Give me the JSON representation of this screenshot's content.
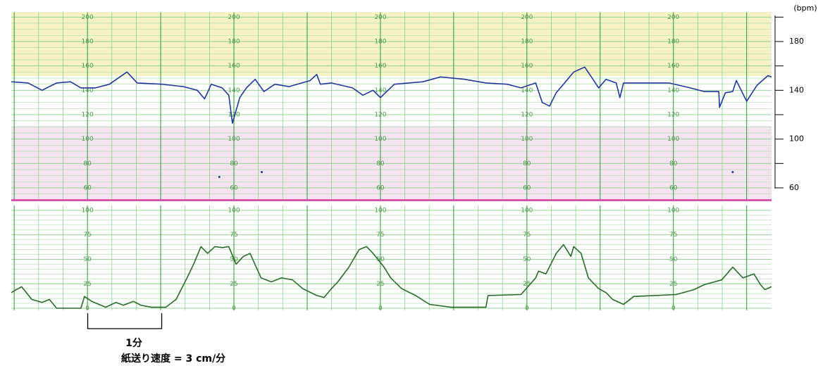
{
  "chart_data": [
    {
      "type": "line",
      "y_label": "(bpm)",
      "xlim": [
        -0.04,
        10.34
      ],
      "xticks": [
        0,
        1,
        2,
        3,
        4,
        5,
        6,
        7,
        8,
        9,
        10
      ],
      "ylim": [
        50,
        204
      ],
      "yticks": [
        60,
        80,
        100,
        120,
        140,
        160,
        180,
        200
      ],
      "y2lim": [
        50,
        204
      ],
      "y2ticks": [
        60,
        100,
        140,
        180
      ],
      "series": [
        {
          "color": "#22379b",
          "x": [
            -0.04,
            0.19,
            0.38,
            0.58,
            0.77,
            0.91,
            1.11,
            1.3,
            1.54,
            1.68,
            2.02,
            2.31,
            2.5,
            2.6,
            2.69,
            2.84,
            2.93,
            2.98,
            3.08,
            3.17,
            3.29,
            3.41,
            3.56,
            3.75,
            4.04,
            4.13,
            4.18,
            4.33,
            4.62,
            4.76,
            4.9,
            5.0,
            5.19,
            5.58,
            5.82,
            6.15,
            6.44,
            6.73,
            6.92,
            7.12,
            7.21,
            7.31,
            7.4,
            7.5,
            7.64,
            7.79,
            7.88,
            7.98,
            8.08,
            8.22,
            8.27,
            8.32,
            8.65,
            8.94,
            9.23,
            9.42,
            9.62,
            9.63,
            9.71,
            9.81,
            9.86,
            10.0,
            10.14,
            10.29,
            10.34
          ],
          "values": [
            147,
            146,
            140,
            146,
            147,
            142,
            142,
            145,
            155,
            146,
            145,
            143,
            140,
            133,
            145,
            142,
            136,
            113,
            134,
            142,
            149,
            139,
            145,
            143,
            148,
            153,
            145,
            146,
            142,
            136,
            140,
            134,
            145,
            147,
            151,
            149,
            146,
            145,
            142,
            146,
            130,
            127,
            138,
            145,
            155,
            159,
            151,
            142,
            149,
            146,
            134,
            146,
            146,
            146,
            142,
            139,
            139,
            126,
            138,
            139,
            148,
            131,
            144,
            152,
            151
          ]
        },
        {
          "type": "scatter",
          "color": "#22379b",
          "x": [
            2.8,
            3.38,
            9.81
          ],
          "values": [
            69,
            73,
            73
          ]
        }
      ]
    },
    {
      "type": "line",
      "xlim": [
        -0.04,
        10.34
      ],
      "xticks": [
        0,
        1,
        2,
        3,
        4,
        5,
        6,
        7,
        8,
        9,
        10
      ],
      "ylim": [
        -2,
        105
      ],
      "yticks": [
        0,
        25,
        50,
        75,
        100
      ],
      "annotations": [
        "1分",
        "紙送り速度 = 3 cm/分"
      ],
      "series": [
        {
          "color": "#2b6a2b",
          "x": [
            -0.04,
            0.1,
            0.24,
            0.38,
            0.48,
            0.58,
            0.91,
            0.96,
            1.06,
            1.25,
            1.39,
            1.49,
            1.63,
            1.73,
            1.88,
            2.07,
            2.21,
            2.36,
            2.45,
            2.55,
            2.64,
            2.74,
            2.84,
            2.93,
            3.03,
            3.13,
            3.22,
            3.37,
            3.51,
            3.65,
            3.8,
            3.94,
            4.13,
            4.23,
            4.33,
            4.42,
            4.57,
            4.71,
            4.81,
            4.9,
            5.05,
            5.14,
            5.29,
            5.48,
            5.67,
            5.96,
            6.44,
            6.47,
            6.92,
            7.12,
            7.16,
            7.26,
            7.4,
            7.5,
            7.6,
            7.64,
            7.74,
            7.84,
            7.98,
            8.08,
            8.17,
            8.32,
            8.46,
            8.75,
            9.04,
            9.28,
            9.42,
            9.66,
            9.81,
            9.95,
            10.1,
            10.19,
            10.25,
            10.34
          ],
          "values": [
            16,
            22,
            9,
            6,
            9,
            0,
            0,
            12,
            7,
            1,
            6,
            3,
            7,
            3,
            1,
            1,
            9,
            31,
            45,
            63,
            56,
            63,
            62,
            63,
            45,
            53,
            56,
            31,
            27,
            31,
            29,
            20,
            13,
            11,
            20,
            27,
            42,
            60,
            63,
            56,
            42,
            31,
            20,
            13,
            4,
            1,
            1,
            13,
            14,
            31,
            38,
            35,
            56,
            65,
            53,
            63,
            56,
            31,
            20,
            16,
            9,
            4,
            12,
            13,
            14,
            19,
            24,
            29,
            42,
            31,
            35,
            24,
            19,
            22
          ]
        }
      ]
    }
  ]
}
